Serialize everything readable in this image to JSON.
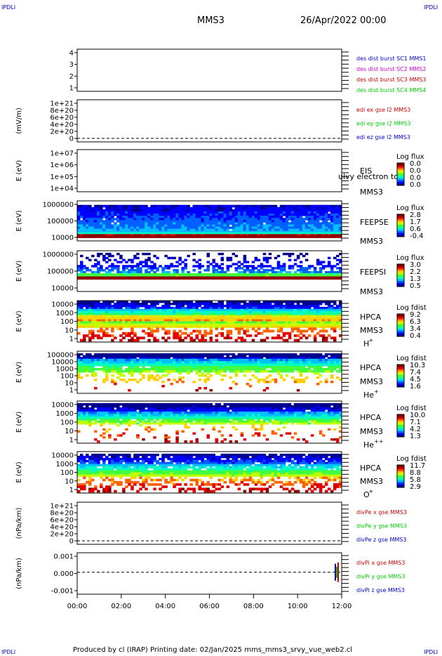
{
  "corners": {
    "top_left": "IPDLI",
    "top_right": "IPDLI",
    "bottom_left": "IPDLI",
    "bottom_right": "IPDLI"
  },
  "header": {
    "spacecraft": "MMS3",
    "date": "26/Apr/2022 00:00"
  },
  "footer": {
    "text": "Produced by cl (IRAP)   Printing date: 02/Jan/2025   mms_mms3_srvy_vue_web2.cl"
  },
  "time_axis": {
    "ticks": [
      "00:00",
      "02:00",
      "04:00",
      "06:00",
      "08:00",
      "10:00",
      "12:00"
    ]
  },
  "colors": {
    "blue": "#0000cc",
    "magenta": "#cc00cc",
    "red": "#cc0000",
    "green": "#00cc00"
  },
  "chart_data": [
    {
      "id": "burst",
      "type": "line",
      "ylabel": "",
      "ylim": [
        0.5,
        4.5
      ],
      "y_ticks": [
        "4",
        "3",
        "2",
        "1"
      ],
      "legend": [
        {
          "text": "des dist burst SC1 MMS1",
          "color": "#0000cc"
        },
        {
          "text": "des dist burst SC2 MMS2",
          "color": "#cc00cc"
        },
        {
          "text": "des dist burst SC3 MMS3",
          "color": "#cc0000"
        },
        {
          "text": "des dist burst SC4 MMS4",
          "color": "#00cc00"
        }
      ]
    },
    {
      "id": "edi",
      "type": "line",
      "ylabel": "(mV/m)",
      "ylim": [
        -1e+20,
        1.05e+21
      ],
      "y_ticks": [
        "1e+21",
        "8e+20",
        "6e+20",
        "4e+20",
        "2e+20",
        "0"
      ],
      "zero_line": true,
      "legend": [
        {
          "text": "edi ex gse l2 MMS3",
          "color": "#cc0000"
        },
        {
          "text": "edi ey gse l2 MMS3",
          "color": "#00cc00"
        },
        {
          "text": "edi ez gse l2 MMS3",
          "color": "#0000cc"
        }
      ]
    },
    {
      "id": "eis",
      "type": "heatmap",
      "ylabel": "E (eV)",
      "log": true,
      "y_ticks": [
        "1e+07",
        "1e+06",
        "1e+05",
        "1e+04"
      ],
      "labels": [
        "EIS",
        "MMS3"
      ],
      "overlay_text": "ulvy electron to",
      "colorbar": {
        "title": "Log flux",
        "ticks": [
          "0.0",
          "0.0",
          "0.0",
          "0.0"
        ]
      }
    },
    {
      "id": "feepse",
      "type": "heatmap",
      "ylabel": "E (eV)",
      "log": true,
      "y_ticks": [
        "1000000",
        "100000",
        "10000"
      ],
      "labels": [
        "FEEPSE",
        "MMS3"
      ],
      "colorbar": {
        "title": "Log flux",
        "ticks": [
          "2.8",
          "1.7",
          "0.6",
          "-0.4"
        ]
      }
    },
    {
      "id": "feepsi",
      "type": "heatmap",
      "ylabel": "E (eV)",
      "log": true,
      "y_ticks": [
        "1000000",
        "100000",
        "10000"
      ],
      "labels": [
        "FEEPSI",
        "MMS3"
      ],
      "colorbar": {
        "title": "Log flux",
        "ticks": [
          "3.0",
          "2.2",
          "1.3",
          "0.5"
        ]
      }
    },
    {
      "id": "hpca-h",
      "type": "heatmap",
      "ylabel": "E (eV)",
      "log": true,
      "y_ticks": [
        "10000",
        "1000",
        "100",
        "10",
        "1"
      ],
      "labels": [
        "HPCA",
        "MMS3"
      ],
      "species": "H",
      "charge": "+",
      "colorbar": {
        "title": "Log fdist",
        "ticks": [
          "9.2",
          "6.3",
          "3.4",
          "0.4"
        ]
      }
    },
    {
      "id": "hpca-he",
      "type": "heatmap",
      "ylabel": "E (eV)",
      "log": true,
      "y_ticks": [
        "100000",
        "10000",
        "1000",
        "100",
        "10",
        "1"
      ],
      "labels": [
        "HPCA",
        "MMS3"
      ],
      "species": "He",
      "charge": "+",
      "colorbar": {
        "title": "Log fdist",
        "ticks": [
          "10.3",
          "7.4",
          "4.5",
          "1.6"
        ]
      }
    },
    {
      "id": "hpca-he2",
      "type": "heatmap",
      "ylabel": "E (eV)",
      "log": true,
      "y_ticks": [
        "10000",
        "1000",
        "100",
        "10",
        "1"
      ],
      "labels": [
        "HPCA",
        "MMS3"
      ],
      "species": "He",
      "charge": "++",
      "colorbar": {
        "title": "Log fdist",
        "ticks": [
          "10.0",
          "7.1",
          "4.2",
          "1.3"
        ]
      }
    },
    {
      "id": "hpca-o",
      "type": "heatmap",
      "ylabel": "E (eV)",
      "log": true,
      "y_ticks": [
        "10000",
        "1000",
        "100",
        "10",
        "1"
      ],
      "labels": [
        "HPCA",
        "MMS3"
      ],
      "species": "O",
      "charge": "+",
      "colorbar": {
        "title": "Log fdist",
        "ticks": [
          "11.7",
          "8.8",
          "5.8",
          "2.9"
        ]
      }
    },
    {
      "id": "divpe",
      "type": "line",
      "ylabel": "(nPa/km)",
      "ylim": [
        -1e+20,
        1.05e+21
      ],
      "y_ticks": [
        "1e+21",
        "8e+20",
        "6e+20",
        "4e+20",
        "2e+20",
        "0"
      ],
      "zero_line": true,
      "legend": [
        {
          "text": "divPe x gse MMS3",
          "color": "#cc0000"
        },
        {
          "text": "divPe y gse MMS3",
          "color": "#00cc00"
        },
        {
          "text": "divPe z gse MMS3",
          "color": "#0000cc"
        }
      ]
    },
    {
      "id": "divpi",
      "type": "line",
      "ylabel": "(nPa/km)",
      "ylim": [
        -0.0015,
        0.0015
      ],
      "y_ticks": [
        "0.001",
        "0.000",
        "-0.001"
      ],
      "zero_line": true,
      "legend": [
        {
          "text": "divPi x gse MMS3",
          "color": "#cc0000"
        },
        {
          "text": "divPi y gse MMS3",
          "color": "#00cc00"
        },
        {
          "text": "divPi z gse MMS3",
          "color": "#0000cc"
        }
      ]
    }
  ]
}
